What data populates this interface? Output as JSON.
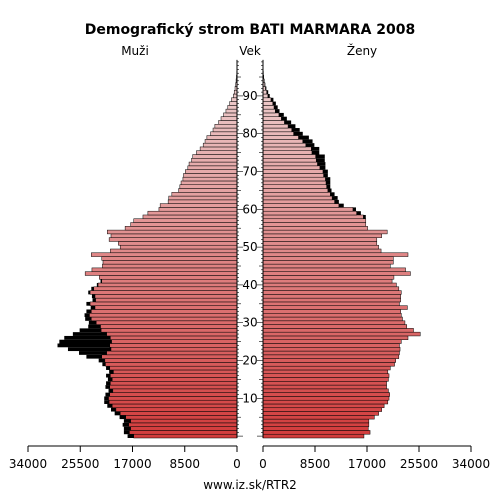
{
  "chart_data": {
    "type": "bar",
    "title": "Demografický strom BATI MARMARA 2008",
    "left_label": "Muži",
    "center_label": "Vek",
    "right_label": "Ženy",
    "source": "www.iz.sk/RTR2",
    "x_ticks_left": [
      "34000",
      "25500",
      "17000",
      "8500",
      "0"
    ],
    "x_ticks_right": [
      "0",
      "8500",
      "17000",
      "25500",
      "34000"
    ],
    "age_ticks": [
      "10",
      "20",
      "30",
      "40",
      "50",
      "60",
      "70",
      "80",
      "90"
    ],
    "xlim": [
      0,
      34000
    ],
    "age_range": [
      0,
      99
    ],
    "age_values": [
      0,
      1,
      2,
      3,
      4,
      5,
      6,
      7,
      8,
      9,
      10,
      11,
      12,
      13,
      14,
      15,
      16,
      17,
      18,
      19,
      20,
      21,
      22,
      23,
      24,
      25,
      26,
      27,
      28,
      29,
      30,
      31,
      32,
      33,
      34,
      35,
      36,
      37,
      38,
      39,
      40,
      41,
      42,
      43,
      44,
      45,
      46,
      47,
      48,
      49,
      50,
      51,
      52,
      53,
      54,
      55,
      56,
      57,
      58,
      59,
      60,
      61,
      62,
      63,
      64,
      65,
      66,
      67,
      68,
      69,
      70,
      71,
      72,
      73,
      74,
      75,
      76,
      77,
      78,
      79,
      80,
      81,
      82,
      83,
      84,
      85,
      86,
      87,
      88,
      89,
      90,
      91,
      92,
      93,
      94,
      95,
      96,
      97,
      98,
      99
    ],
    "series": [
      {
        "name": "Muži",
        "values": [
          16800,
          17500,
          17300,
          17600,
          17300,
          18100,
          19000,
          19700,
          20300,
          20800,
          20900,
          20700,
          20200,
          20700,
          20600,
          20300,
          20600,
          20100,
          20700,
          21400,
          21500,
          22000,
          21200,
          20500,
          20700,
          20400,
          20600,
          21200,
          22100,
          22200,
          22900,
          23700,
          24000,
          23700,
          23100,
          23900,
          23000,
          23100,
          23900,
          23300,
          22600,
          22000,
          22400,
          24700,
          23600,
          21900,
          21800,
          22000,
          23700,
          20600,
          19000,
          19300,
          20800,
          20500,
          21100,
          18200,
          17300,
          16800,
          15300,
          14500,
          12700,
          12500,
          11200,
          11100,
          10600,
          9500,
          9300,
          9100,
          8800,
          8700,
          8400,
          8000,
          7800,
          7400,
          7200,
          6600,
          6000,
          5500,
          5200,
          4900,
          4300,
          3900,
          3600,
          3000,
          2600,
          2200,
          1800,
          1500,
          1200,
          900,
          600,
          450,
          320,
          220,
          150,
          90,
          50,
          30,
          15,
          8
        ],
        "excess": [
          1000,
          900,
          1100,
          1000,
          1100,
          1000,
          900,
          800,
          800,
          800,
          700,
          700,
          700,
          700,
          700,
          700,
          700,
          700,
          600,
          500,
          1000,
          2500,
          4500,
          7000,
          8500,
          8500,
          7500,
          5500,
          3500,
          2000,
          1200,
          1000,
          800,
          800,
          700,
          600,
          500,
          500,
          300,
          400,
          200,
          200,
          0,
          0,
          0,
          0,
          0,
          0,
          0,
          0,
          0,
          0,
          0,
          0,
          0,
          0,
          0,
          0,
          0,
          0,
          0,
          0,
          0,
          0,
          0,
          0,
          0,
          0,
          0,
          0,
          0,
          0,
          0,
          0,
          0,
          0,
          0,
          0,
          0,
          0,
          0,
          0,
          0,
          0,
          0,
          0,
          0,
          0,
          0,
          0,
          0,
          0,
          0,
          0,
          0,
          0,
          0,
          0,
          0,
          0
        ]
      },
      {
        "name": "Ženy",
        "values": [
          16500,
          17500,
          17200,
          17300,
          17300,
          18200,
          18900,
          19400,
          19800,
          20400,
          20600,
          20700,
          20500,
          20200,
          20200,
          20500,
          20600,
          20400,
          20800,
          21500,
          21700,
          22200,
          22300,
          22400,
          22300,
          22600,
          23700,
          25700,
          24600,
          23500,
          23200,
          22800,
          22600,
          22500,
          23600,
          22300,
          22500,
          22500,
          22600,
          22200,
          21800,
          21100,
          21400,
          24100,
          23300,
          20800,
          21300,
          21300,
          23700,
          19300,
          18900,
          18600,
          18600,
          19400,
          20300,
          17100,
          16800,
          16800,
          16400,
          15300,
          14700,
          12400,
          11700,
          11300,
          11000,
          10600,
          10400,
          10300,
          10200,
          9900,
          9800,
          9300,
          8900,
          8700,
          8600,
          8000,
          7900,
          7000,
          6500,
          5800,
          5000,
          4700,
          4100,
          3500,
          3000,
          2600,
          2000,
          1800,
          1600,
          1300,
          800,
          600,
          400,
          280,
          180,
          110,
          60,
          35,
          18,
          9
        ],
        "excess": [
          0,
          0,
          0,
          0,
          0,
          0,
          0,
          0,
          0,
          0,
          0,
          0,
          0,
          0,
          0,
          0,
          0,
          0,
          0,
          0,
          0,
          0,
          0,
          0,
          0,
          0,
          0,
          0,
          0,
          0,
          0,
          0,
          0,
          0,
          0,
          0,
          0,
          0,
          0,
          0,
          0,
          0,
          0,
          0,
          0,
          0,
          0,
          0,
          0,
          0,
          0,
          0,
          0,
          0,
          0,
          0,
          0,
          0,
          400,
          700,
          500,
          800,
          700,
          900,
          700,
          600,
          600,
          700,
          800,
          700,
          800,
          900,
          1300,
          1400,
          1500,
          1200,
          1300,
          1400,
          1600,
          1700,
          1500,
          1300,
          1200,
          1100,
          900,
          800,
          700,
          600,
          500,
          400,
          300,
          250,
          150,
          100,
          70,
          40,
          20,
          10,
          5,
          3
        ]
      }
    ]
  }
}
